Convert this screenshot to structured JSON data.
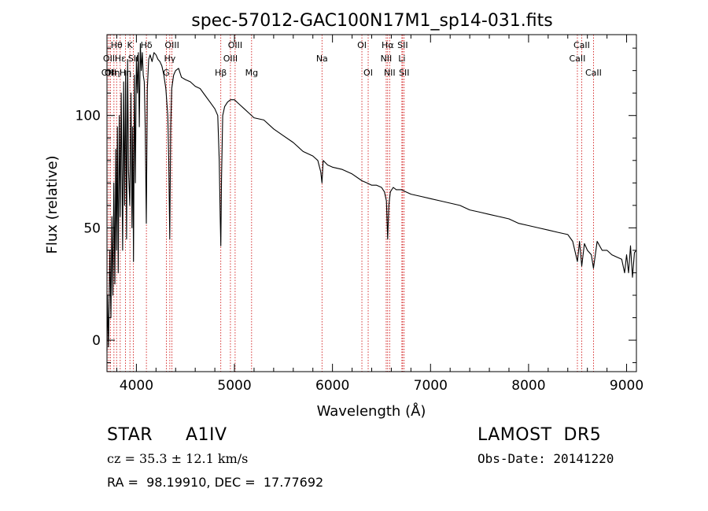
{
  "chart_data": {
    "type": "line",
    "title": "spec-57012-GAC100N17M1_sp14-031.fits",
    "xlabel": "Wavelength (Å)",
    "ylabel": "Flux (relative)",
    "xlim": [
      3700,
      9100
    ],
    "ylim": [
      -14,
      136
    ],
    "xticks": [
      4000,
      5000,
      6000,
      7000,
      8000,
      9000
    ],
    "yticks": [
      0,
      50,
      100
    ],
    "grid": false,
    "line_color": "#000000",
    "marker_color": "#cc0000",
    "series": [
      {
        "x": [
          3700,
          3705,
          3715,
          3730,
          3740,
          3750,
          3760,
          3770,
          3780,
          3790,
          3798,
          3806,
          3815,
          3825,
          3835,
          3845,
          3860,
          3870,
          3880,
          3890,
          3900,
          3910,
          3920,
          3933,
          3945,
          3955,
          3962,
          3970,
          3980,
          3990,
          4000,
          4010,
          4020,
          4030,
          4040,
          4050,
          4060,
          4070,
          4080,
          4090,
          4101,
          4112,
          4125,
          4140,
          4160,
          4180,
          4200,
          4220,
          4240,
          4260,
          4280,
          4300,
          4320,
          4330,
          4340,
          4350,
          4360,
          4380,
          4400,
          4430,
          4460,
          4500,
          4550,
          4600,
          4650,
          4700,
          4750,
          4800,
          4830,
          4845,
          4855,
          4861,
          4868,
          4880,
          4900,
          4930,
          4960,
          5000,
          5050,
          5100,
          5150,
          5200,
          5300,
          5400,
          5500,
          5600,
          5700,
          5800,
          5850,
          5880,
          5893,
          5905,
          5950,
          6000,
          6100,
          6200,
          6300,
          6350,
          6400,
          6450,
          6500,
          6530,
          6550,
          6563,
          6575,
          6590,
          6620,
          6650,
          6700,
          6750,
          6800,
          6900,
          7000,
          7100,
          7200,
          7300,
          7400,
          7500,
          7600,
          7700,
          7800,
          7900,
          8000,
          8100,
          8200,
          8300,
          8400,
          8450,
          8498,
          8520,
          8542,
          8570,
          8600,
          8640,
          8662,
          8700,
          8750,
          8800,
          8850,
          8900,
          8950,
          8980,
          9000,
          9020,
          9040,
          9060,
          9080,
          9100
        ],
        "y": [
          -5,
          20,
          -3,
          40,
          10,
          55,
          20,
          70,
          25,
          85,
          40,
          95,
          30,
          100,
          55,
          110,
          40,
          115,
          60,
          120,
          45,
          125,
          75,
          60,
          110,
          50,
          95,
          35,
          118,
          70,
          126,
          110,
          128,
          95,
          132,
          120,
          128,
          118,
          115,
          95,
          52,
          112,
          125,
          127,
          124,
          128,
          127,
          125,
          124,
          122,
          118,
          112,
          100,
          80,
          45,
          95,
          112,
          118,
          120,
          121,
          117,
          116,
          115,
          113,
          112,
          109,
          106,
          103,
          100,
          80,
          55,
          42,
          72,
          100,
          104,
          106,
          107,
          107,
          105,
          103,
          101,
          99,
          98,
          94,
          91,
          88,
          84,
          82,
          80,
          75,
          70,
          80,
          78,
          77,
          76,
          74,
          71,
          70,
          69,
          69,
          68,
          66,
          62,
          45,
          60,
          66,
          68,
          67,
          67,
          66,
          65,
          64,
          63,
          62,
          61,
          60,
          58,
          57,
          56,
          55,
          54,
          52,
          51,
          50,
          49,
          48,
          47,
          44,
          35,
          44,
          33,
          43,
          40,
          38,
          32,
          44,
          40,
          40,
          38,
          37,
          36,
          30,
          38,
          30,
          42,
          28,
          39,
          40
        ]
      }
    ],
    "line_markers": [
      {
        "x": 3703,
        "label": "OII",
        "row": 3
      },
      {
        "x": 3720,
        "label": "OII",
        "row": 2
      },
      {
        "x": 3736,
        "label": "OII",
        "row": 3
      },
      {
        "x": 3771,
        "label": "Hη",
        "row": 3
      },
      {
        "x": 3798,
        "label": "Hθ",
        "row": 1
      },
      {
        "x": 3835,
        "label": "Hε",
        "row": 2
      },
      {
        "x": 3889,
        "label": "Hη",
        "row": 3
      },
      {
        "x": 3934,
        "label": "K",
        "row": 1
      },
      {
        "x": 3969,
        "label": "SII",
        "row": 2
      },
      {
        "x": 4102,
        "label": "Hδ",
        "row": 1
      },
      {
        "x": 4305,
        "label": "G",
        "row": 3
      },
      {
        "x": 4341,
        "label": "Hγ",
        "row": 2
      },
      {
        "x": 4363,
        "label": "OIII",
        "row": 1
      },
      {
        "x": 4861,
        "label": "Hβ",
        "row": 3
      },
      {
        "x": 4959,
        "label": "OIII",
        "row": 2
      },
      {
        "x": 5007,
        "label": "OIII",
        "row": 1
      },
      {
        "x": 5175,
        "label": "Mg",
        "row": 3
      },
      {
        "x": 5893,
        "label": "Na",
        "row": 2
      },
      {
        "x": 6300,
        "label": "OI",
        "row": 1
      },
      {
        "x": 6364,
        "label": "OI",
        "row": 3
      },
      {
        "x": 6548,
        "label": "NII",
        "row": 2
      },
      {
        "x": 6563,
        "label": "Hα",
        "row": 1
      },
      {
        "x": 6583,
        "label": "NII",
        "row": 3
      },
      {
        "x": 6708,
        "label": "Li",
        "row": 2
      },
      {
        "x": 6716,
        "label": "SII",
        "row": 1
      },
      {
        "x": 6731,
        "label": "SII",
        "row": 3
      },
      {
        "x": 8498,
        "label": "CaII",
        "row": 2
      },
      {
        "x": 8542,
        "label": "CaII",
        "row": 1
      },
      {
        "x": 8662,
        "label": "CaII",
        "row": 3
      }
    ]
  },
  "info": {
    "object_type": "STAR",
    "spectral_class": "A1IV",
    "survey": "LAMOST  DR5",
    "redshift": "cz = 35.3 ± 12.1 km/s",
    "obs_date": "Obs-Date: 20141220",
    "coordinates": "RA =  98.19910, DEC =  17.77692"
  }
}
